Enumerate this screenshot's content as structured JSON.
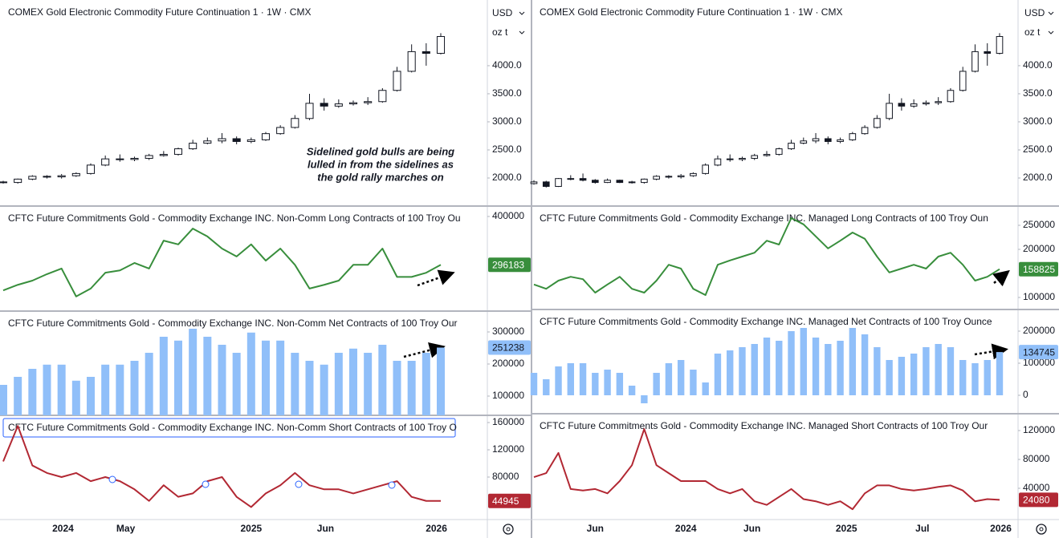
{
  "toolbar": {
    "currency": "USD",
    "unit": "oz t"
  },
  "chart_data": [
    {
      "type": "candlestick",
      "title": "COMEX Gold Electronic Commodity Future Continuation 1 · 1W · CMX",
      "annotation": [
        "Sidelined gold bulls are being",
        "lulled in from the sidelines as",
        "the gold rally marches on"
      ],
      "open": [
        1930,
        1920,
        1980,
        2030,
        2020,
        2040,
        2080,
        2230,
        2340,
        2330,
        2350,
        2400,
        2420,
        2520,
        2620,
        2660,
        2700,
        2650,
        2680,
        2790,
        2900,
        3060,
        3330,
        3280,
        3320,
        3340,
        3360,
        3560,
        3900,
        4250,
        4220
      ],
      "high": [
        1950,
        1990,
        2050,
        2050,
        2070,
        2100,
        2260,
        2400,
        2420,
        2380,
        2430,
        2480,
        2540,
        2680,
        2720,
        2800,
        2740,
        2720,
        2820,
        2940,
        3120,
        3500,
        3420,
        3400,
        3380,
        3440,
        3600,
        3980,
        4380,
        4400,
        4580
      ],
      "low": [
        1900,
        1900,
        1960,
        1990,
        1990,
        2020,
        2060,
        2210,
        2290,
        2300,
        2320,
        2380,
        2400,
        2500,
        2600,
        2620,
        2600,
        2620,
        2660,
        2770,
        2880,
        3030,
        3200,
        3250,
        3290,
        3300,
        3340,
        3540,
        3880,
        4000,
        4200
      ],
      "close": [
        1920,
        1980,
        2030,
        2020,
        2040,
        2080,
        2230,
        2340,
        2330,
        2350,
        2400,
        2420,
        2520,
        2620,
        2660,
        2700,
        2650,
        2680,
        2790,
        2900,
        3060,
        3330,
        3280,
        3320,
        3340,
        3360,
        3560,
        3900,
        4250,
        4220,
        4520
      ],
      "color": "#131722",
      "ylim": [
        1500,
        5170
      ],
      "yticks": [
        {
          "value": 4000,
          "label": "4000.0"
        },
        {
          "value": 3500,
          "label": "3500.0"
        },
        {
          "value": 3000,
          "label": "3000.0"
        },
        {
          "value": 2500,
          "label": "2500.0"
        },
        {
          "value": 2000,
          "label": "2000.0"
        }
      ],
      "xticks": [
        {
          "value": 4.1,
          "label": "2024"
        },
        {
          "value": 8.4,
          "label": "May"
        },
        {
          "value": 17,
          "label": "2025"
        },
        {
          "value": 22.1,
          "label": "Jun"
        },
        {
          "value": 29.7,
          "label": "2026"
        }
      ],
      "grid": false
    },
    {
      "type": "line",
      "title": "CFTC Future Commitments Gold - Commodity Exchange INC. Non-Comm Long Contracts of 100 Troy Ou",
      "values": [
        241000,
        253000,
        262000,
        276000,
        288000,
        228000,
        245000,
        279000,
        284000,
        300000,
        288000,
        348000,
        340000,
        374000,
        357000,
        331000,
        314000,
        340000,
        305000,
        331000,
        296000,
        245000,
        253000,
        262000,
        296000,
        296000,
        331000,
        270000,
        270000,
        279000,
        296183
      ],
      "color": "#388e3c",
      "label_text_color": "#ffffff",
      "ylim": [
        196500,
        422400
      ],
      "yticks": [
        400000
      ],
      "grid": false
    },
    {
      "type": "bar",
      "title": "CFTC Future Commitments Gold - Commodity Exchange INC. Non-Comm Net Contracts of 100 Troy Our",
      "values": [
        135000,
        160000,
        185000,
        198000,
        198000,
        148000,
        160000,
        198000,
        198000,
        210000,
        235000,
        285000,
        273000,
        310000,
        285000,
        260000,
        235000,
        298000,
        273000,
        273000,
        235000,
        210000,
        198000,
        235000,
        248000,
        235000,
        260000,
        210000,
        210000,
        235000,
        251238
      ],
      "color": "#90bff9",
      "label_text_color": "#131722",
      "ylim": [
        40000,
        365000
      ],
      "yticks": [
        300000,
        200000,
        100000
      ],
      "grid": false
    },
    {
      "type": "line",
      "title": "CFTC Future Commitments Gold - Commodity Exchange INC. Non-Comm Short Contracts of 100 Troy O",
      "values": [
        103000,
        155000,
        97000,
        86000,
        80000,
        86000,
        74000,
        80000,
        74000,
        62000,
        45000,
        68000,
        51000,
        56000,
        74000,
        80000,
        51000,
        36000,
        56000,
        68000,
        86000,
        68000,
        62000,
        62000,
        56000,
        62000,
        68000,
        74000,
        51000,
        45000,
        44945
      ],
      "color": "#b22833",
      "label_text_color": "#ffffff",
      "ylim": [
        17650,
        170600
      ],
      "yticks": [
        160000,
        120000,
        80000
      ],
      "grid": false
    },
    {
      "type": "candlestick",
      "title": "COMEX Gold Electronic Commodity Future Continuation 1 · 1W · CMX",
      "open": [
        1900,
        1930,
        1850,
        1990,
        1990,
        1960,
        1920,
        1960,
        1930,
        1920,
        1980,
        2030,
        2020,
        2040,
        2080,
        2230,
        2340,
        2330,
        2350,
        2400,
        2420,
        2520,
        2620,
        2660,
        2700,
        2650,
        2680,
        2790,
        2900,
        3060,
        3330,
        3280,
        3320,
        3340,
        3360,
        3560,
        3900,
        4250,
        4220
      ],
      "high": [
        1960,
        1950,
        2000,
        2050,
        2080,
        1980,
        1990,
        1970,
        1950,
        1990,
        2050,
        2050,
        2070,
        2100,
        2260,
        2400,
        2420,
        2380,
        2430,
        2480,
        2540,
        2680,
        2720,
        2800,
        2740,
        2720,
        2820,
        2940,
        3120,
        3500,
        3420,
        3400,
        3380,
        3440,
        3600,
        3980,
        4380,
        4400,
        4580
      ],
      "low": [
        1880,
        1830,
        1840,
        1960,
        1940,
        1900,
        1910,
        1910,
        1900,
        1900,
        1960,
        1990,
        1990,
        2020,
        2060,
        2210,
        2290,
        2300,
        2320,
        2380,
        2400,
        2500,
        2600,
        2620,
        2600,
        2620,
        2660,
        2770,
        2880,
        3030,
        3200,
        3250,
        3290,
        3300,
        3340,
        3540,
        3880,
        4000,
        4200
      ],
      "close": [
        1930,
        1850,
        1990,
        1990,
        1960,
        1920,
        1960,
        1920,
        1920,
        1980,
        2030,
        2020,
        2040,
        2080,
        2230,
        2340,
        2330,
        2350,
        2400,
        2420,
        2520,
        2620,
        2660,
        2700,
        2650,
        2680,
        2790,
        2900,
        3060,
        3330,
        3280,
        3320,
        3340,
        3360,
        3560,
        3900,
        4250,
        4220,
        4520
      ],
      "color": "#131722",
      "ylim": [
        1500,
        5170
      ],
      "yticks": [
        {
          "value": 4000,
          "label": "4000.0"
        },
        {
          "value": 3500,
          "label": "3500.0"
        },
        {
          "value": 3000,
          "label": "3000.0"
        },
        {
          "value": 2500,
          "label": "2500.0"
        },
        {
          "value": 2000,
          "label": "2000.0"
        }
      ],
      "xticks": [
        {
          "value": 5,
          "label": "Jun"
        },
        {
          "value": 12.4,
          "label": "2024"
        },
        {
          "value": 17.8,
          "label": "Jun"
        },
        {
          "value": 25.5,
          "label": "2025"
        },
        {
          "value": 31.7,
          "label": "Jul"
        },
        {
          "value": 38.1,
          "label": "2026"
        }
      ],
      "grid": false
    },
    {
      "type": "line",
      "title": "CFTC Future Commitments Gold - Commodity Exchange INC. Managed Long Contracts of 100 Troy Oun",
      "values": [
        127000,
        118000,
        135000,
        143000,
        138000,
        110000,
        127000,
        143000,
        118000,
        110000,
        135000,
        168000,
        160000,
        118000,
        105000,
        168000,
        177000,
        185000,
        193000,
        218000,
        210000,
        265000,
        252000,
        227000,
        202000,
        218000,
        235000,
        222000,
        185000,
        152000,
        160000,
        168000,
        160000,
        185000,
        193000,
        168000,
        135000,
        143000,
        158825
      ],
      "color": "#388e3c",
      "label_text_color": "#ffffff",
      "ylim": [
        75000,
        290000
      ],
      "yticks": [
        250000,
        200000,
        100000
      ],
      "grid": false
    },
    {
      "type": "bar",
      "title": "CFTC Future Commitments Gold - Commodity Exchange INC. Managed Net Contracts of 100 Troy Ounce",
      "values": [
        70000,
        50000,
        90000,
        100000,
        100000,
        70000,
        80000,
        70000,
        30000,
        -25000,
        70000,
        100000,
        110000,
        80000,
        40000,
        130000,
        140000,
        150000,
        160000,
        180000,
        170000,
        200000,
        210000,
        180000,
        160000,
        170000,
        210000,
        190000,
        150000,
        110000,
        120000,
        130000,
        150000,
        160000,
        150000,
        110000,
        100000,
        110000,
        134745
      ],
      "color": "#90bff9",
      "label_text_color": "#131722",
      "ylim": [
        -57500,
        267500
      ],
      "yticks": [
        200000,
        100000,
        0
      ],
      "grid": false
    },
    {
      "type": "line",
      "title": "CFTC Future Commitments Gold - Commodity Exchange INC. Managed Short Contracts of 100 Troy Our",
      "values": [
        55500,
        61000,
        89000,
        39000,
        37000,
        39000,
        33000,
        50000,
        72000,
        122000,
        72000,
        61000,
        50000,
        50000,
        50000,
        39000,
        33000,
        39000,
        22000,
        17000,
        28000,
        39000,
        25000,
        22000,
        17000,
        22000,
        11000,
        33000,
        44000,
        44000,
        39000,
        37000,
        39000,
        42000,
        44000,
        37000,
        22000,
        25000,
        24080
      ],
      "color": "#b22833",
      "label_text_color": "#ffffff",
      "ylim": [
        -3300,
        143300
      ],
      "yticks": [
        120000,
        80000,
        40000
      ],
      "grid": false
    }
  ]
}
